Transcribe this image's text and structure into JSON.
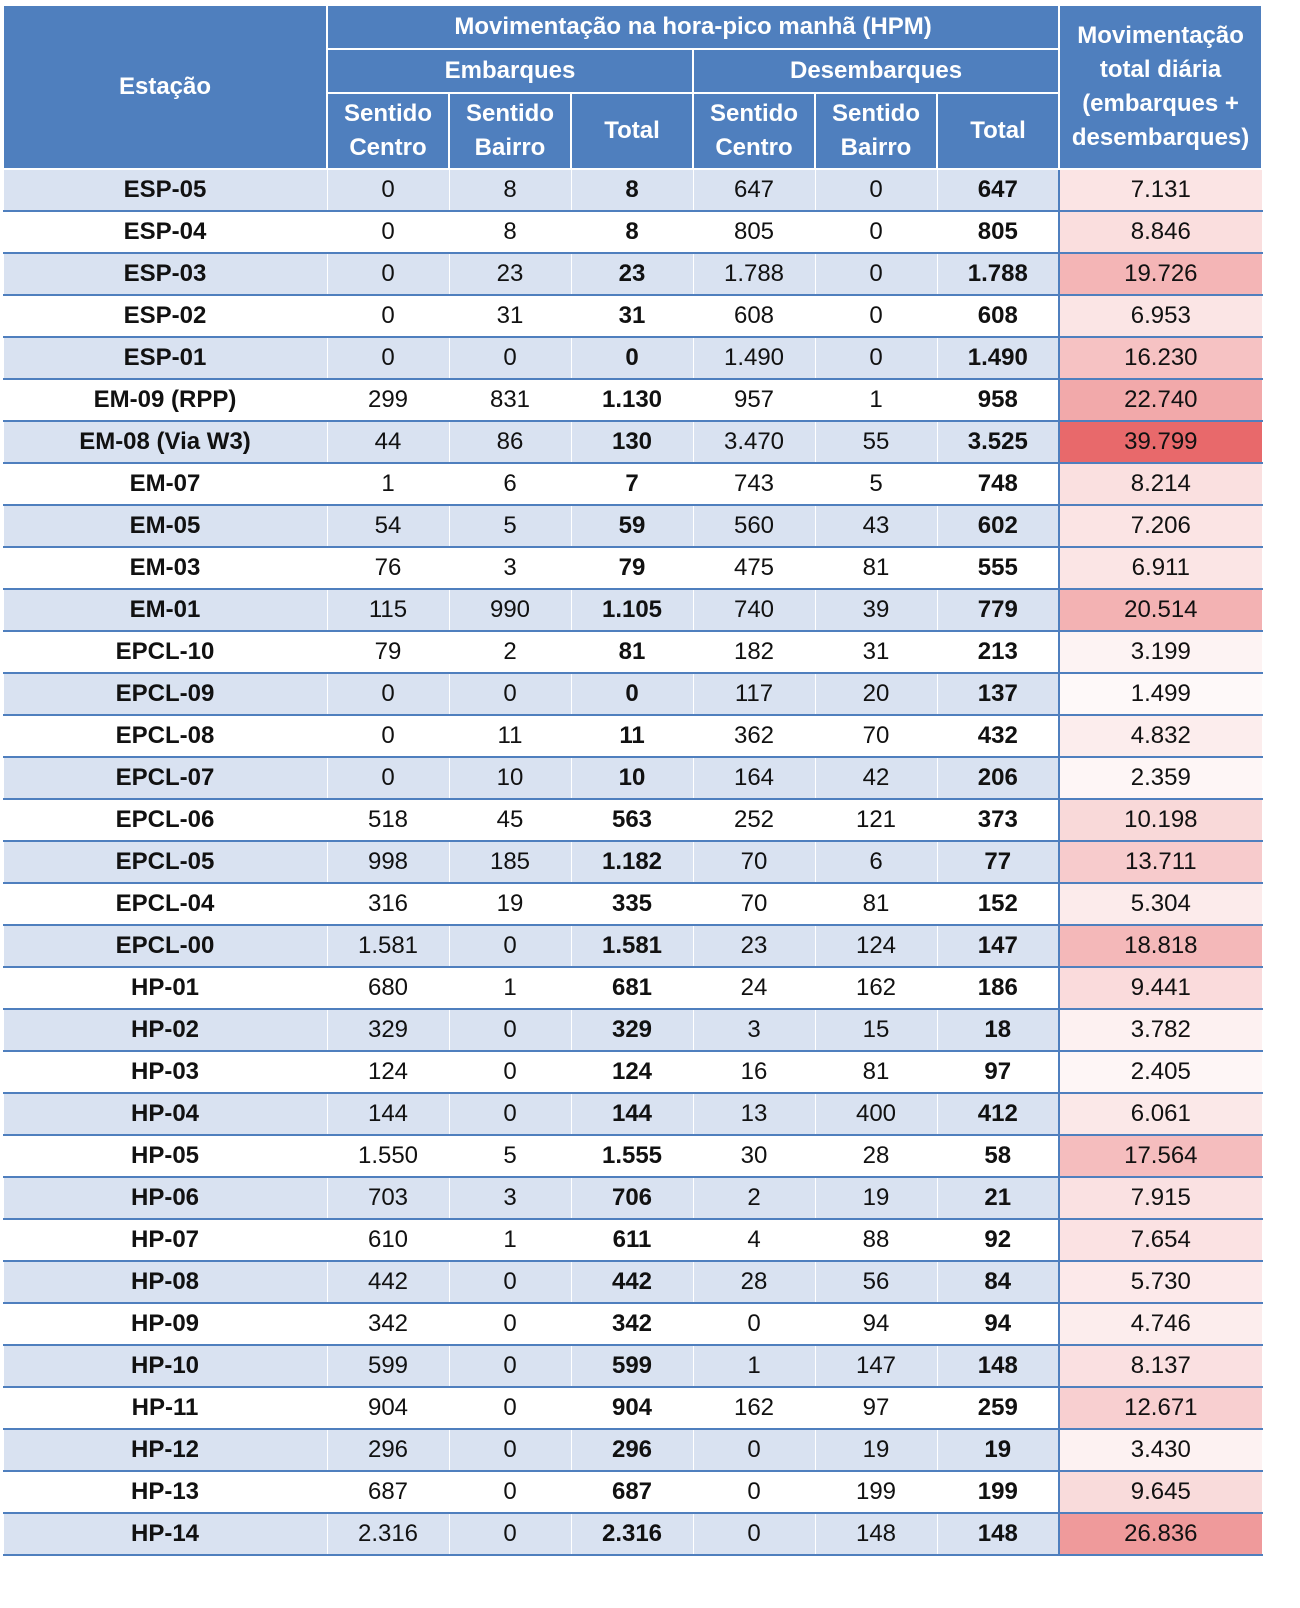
{
  "headers": {
    "station": "Estação",
    "hpm": "Movimentação na hora-pico manhã (HPM)",
    "embarques": "Embarques",
    "desembarques": "Desembarques",
    "daily": "Movimentação total diária (embarques + desembarques)",
    "sentido_centro": "Sentido Centro",
    "sentido_bairro": "Sentido Bairro",
    "total": "Total"
  },
  "heat_color": "#e8696b",
  "heat_max": 39799,
  "rows": [
    {
      "station": "ESP-05",
      "emb_centro": "0",
      "emb_bairro": "8",
      "emb_total": "8",
      "des_centro": "647",
      "des_bairro": "0",
      "des_total": "647",
      "daily": "7.131",
      "daily_value": 7131
    },
    {
      "station": "ESP-04",
      "emb_centro": "0",
      "emb_bairro": "8",
      "emb_total": "8",
      "des_centro": "805",
      "des_bairro": "0",
      "des_total": "805",
      "daily": "8.846",
      "daily_value": 8846
    },
    {
      "station": "ESP-03",
      "emb_centro": "0",
      "emb_bairro": "23",
      "emb_total": "23",
      "des_centro": "1.788",
      "des_bairro": "0",
      "des_total": "1.788",
      "daily": "19.726",
      "daily_value": 19726
    },
    {
      "station": "ESP-02",
      "emb_centro": "0",
      "emb_bairro": "31",
      "emb_total": "31",
      "des_centro": "608",
      "des_bairro": "0",
      "des_total": "608",
      "daily": "6.953",
      "daily_value": 6953
    },
    {
      "station": "ESP-01",
      "emb_centro": "0",
      "emb_bairro": "0",
      "emb_total": "0",
      "des_centro": "1.490",
      "des_bairro": "0",
      "des_total": "1.490",
      "daily": "16.230",
      "daily_value": 16230
    },
    {
      "station": "EM-09 (RPP)",
      "emb_centro": "299",
      "emb_bairro": "831",
      "emb_total": "1.130",
      "des_centro": "957",
      "des_bairro": "1",
      "des_total": "958",
      "daily": "22.740",
      "daily_value": 22740
    },
    {
      "station": "EM-08 (Via W3)",
      "emb_centro": "44",
      "emb_bairro": "86",
      "emb_total": "130",
      "des_centro": "3.470",
      "des_bairro": "55",
      "des_total": "3.525",
      "daily": "39.799",
      "daily_value": 39799
    },
    {
      "station": "EM-07",
      "emb_centro": "1",
      "emb_bairro": "6",
      "emb_total": "7",
      "des_centro": "743",
      "des_bairro": "5",
      "des_total": "748",
      "daily": "8.214",
      "daily_value": 8214
    },
    {
      "station": "EM-05",
      "emb_centro": "54",
      "emb_bairro": "5",
      "emb_total": "59",
      "des_centro": "560",
      "des_bairro": "43",
      "des_total": "602",
      "daily": "7.206",
      "daily_value": 7206
    },
    {
      "station": "EM-03",
      "emb_centro": "76",
      "emb_bairro": "3",
      "emb_total": "79",
      "des_centro": "475",
      "des_bairro": "81",
      "des_total": "555",
      "daily": "6.911",
      "daily_value": 6911
    },
    {
      "station": "EM-01",
      "emb_centro": "115",
      "emb_bairro": "990",
      "emb_total": "1.105",
      "des_centro": "740",
      "des_bairro": "39",
      "des_total": "779",
      "daily": "20.514",
      "daily_value": 20514
    },
    {
      "station": "EPCL-10",
      "emb_centro": "79",
      "emb_bairro": "2",
      "emb_total": "81",
      "des_centro": "182",
      "des_bairro": "31",
      "des_total": "213",
      "daily": "3.199",
      "daily_value": 3199
    },
    {
      "station": "EPCL-09",
      "emb_centro": "0",
      "emb_bairro": "0",
      "emb_total": "0",
      "des_centro": "117",
      "des_bairro": "20",
      "des_total": "137",
      "daily": "1.499",
      "daily_value": 1499
    },
    {
      "station": "EPCL-08",
      "emb_centro": "0",
      "emb_bairro": "11",
      "emb_total": "11",
      "des_centro": "362",
      "des_bairro": "70",
      "des_total": "432",
      "daily": "4.832",
      "daily_value": 4832
    },
    {
      "station": "EPCL-07",
      "emb_centro": "0",
      "emb_bairro": "10",
      "emb_total": "10",
      "des_centro": "164",
      "des_bairro": "42",
      "des_total": "206",
      "daily": "2.359",
      "daily_value": 2359
    },
    {
      "station": "EPCL-06",
      "emb_centro": "518",
      "emb_bairro": "45",
      "emb_total": "563",
      "des_centro": "252",
      "des_bairro": "121",
      "des_total": "373",
      "daily": "10.198",
      "daily_value": 10198
    },
    {
      "station": "EPCL-05",
      "emb_centro": "998",
      "emb_bairro": "185",
      "emb_total": "1.182",
      "des_centro": "70",
      "des_bairro": "6",
      "des_total": "77",
      "daily": "13.711",
      "daily_value": 13711
    },
    {
      "station": "EPCL-04",
      "emb_centro": "316",
      "emb_bairro": "19",
      "emb_total": "335",
      "des_centro": "70",
      "des_bairro": "81",
      "des_total": "152",
      "daily": "5.304",
      "daily_value": 5304
    },
    {
      "station": "EPCL-00",
      "emb_centro": "1.581",
      "emb_bairro": "0",
      "emb_total": "1.581",
      "des_centro": "23",
      "des_bairro": "124",
      "des_total": "147",
      "daily": "18.818",
      "daily_value": 18818
    },
    {
      "station": "HP-01",
      "emb_centro": "680",
      "emb_bairro": "1",
      "emb_total": "681",
      "des_centro": "24",
      "des_bairro": "162",
      "des_total": "186",
      "daily": "9.441",
      "daily_value": 9441
    },
    {
      "station": "HP-02",
      "emb_centro": "329",
      "emb_bairro": "0",
      "emb_total": "329",
      "des_centro": "3",
      "des_bairro": "15",
      "des_total": "18",
      "daily": "3.782",
      "daily_value": 3782
    },
    {
      "station": "HP-03",
      "emb_centro": "124",
      "emb_bairro": "0",
      "emb_total": "124",
      "des_centro": "16",
      "des_bairro": "81",
      "des_total": "97",
      "daily": "2.405",
      "daily_value": 2405
    },
    {
      "station": "HP-04",
      "emb_centro": "144",
      "emb_bairro": "0",
      "emb_total": "144",
      "des_centro": "13",
      "des_bairro": "400",
      "des_total": "412",
      "daily": "6.061",
      "daily_value": 6061
    },
    {
      "station": "HP-05",
      "emb_centro": "1.550",
      "emb_bairro": "5",
      "emb_total": "1.555",
      "des_centro": "30",
      "des_bairro": "28",
      "des_total": "58",
      "daily": "17.564",
      "daily_value": 17564
    },
    {
      "station": "HP-06",
      "emb_centro": "703",
      "emb_bairro": "3",
      "emb_total": "706",
      "des_centro": "2",
      "des_bairro": "19",
      "des_total": "21",
      "daily": "7.915",
      "daily_value": 7915
    },
    {
      "station": "HP-07",
      "emb_centro": "610",
      "emb_bairro": "1",
      "emb_total": "611",
      "des_centro": "4",
      "des_bairro": "88",
      "des_total": "92",
      "daily": "7.654",
      "daily_value": 7654
    },
    {
      "station": "HP-08",
      "emb_centro": "442",
      "emb_bairro": "0",
      "emb_total": "442",
      "des_centro": "28",
      "des_bairro": "56",
      "des_total": "84",
      "daily": "5.730",
      "daily_value": 5730
    },
    {
      "station": "HP-09",
      "emb_centro": "342",
      "emb_bairro": "0",
      "emb_total": "342",
      "des_centro": "0",
      "des_bairro": "94",
      "des_total": "94",
      "daily": "4.746",
      "daily_value": 4746
    },
    {
      "station": "HP-10",
      "emb_centro": "599",
      "emb_bairro": "0",
      "emb_total": "599",
      "des_centro": "1",
      "des_bairro": "147",
      "des_total": "148",
      "daily": "8.137",
      "daily_value": 8137
    },
    {
      "station": "HP-11",
      "emb_centro": "904",
      "emb_bairro": "0",
      "emb_total": "904",
      "des_centro": "162",
      "des_bairro": "97",
      "des_total": "259",
      "daily": "12.671",
      "daily_value": 12671
    },
    {
      "station": "HP-12",
      "emb_centro": "296",
      "emb_bairro": "0",
      "emb_total": "296",
      "des_centro": "0",
      "des_bairro": "19",
      "des_total": "19",
      "daily": "3.430",
      "daily_value": 3430
    },
    {
      "station": "HP-13",
      "emb_centro": "687",
      "emb_bairro": "0",
      "emb_total": "687",
      "des_centro": "0",
      "des_bairro": "199",
      "des_total": "199",
      "daily": "9.645",
      "daily_value": 9645
    },
    {
      "station": "HP-14",
      "emb_centro": "2.316",
      "emb_bairro": "0",
      "emb_total": "2.316",
      "des_centro": "0",
      "des_bairro": "148",
      "des_total": "148",
      "daily": "26.836",
      "daily_value": 26836
    }
  ]
}
